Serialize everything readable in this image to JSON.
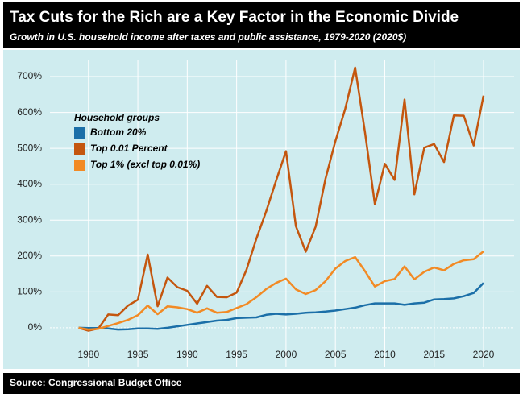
{
  "chart_data": {
    "type": "line",
    "title": "Tax Cuts for the Rich are a Key Factor in the Economic Divide",
    "subtitle": "Growth in U.S. household income after taxes and public assistance, 1979-2020 (2020$)",
    "source": "Source: Congressional Budget Office",
    "legend_title": "Household groups",
    "legend": "top-left",
    "grid": true,
    "x": [
      1979,
      1980,
      1981,
      1982,
      1983,
      1984,
      1985,
      1986,
      1987,
      1988,
      1989,
      1990,
      1991,
      1992,
      1993,
      1994,
      1995,
      1996,
      1997,
      1998,
      1999,
      2000,
      2001,
      2002,
      2003,
      2004,
      2005,
      2006,
      2007,
      2008,
      2009,
      2010,
      2011,
      2012,
      2013,
      2014,
      2015,
      2016,
      2017,
      2018,
      2019,
      2020
    ],
    "series": [
      {
        "name": "Bottom 20%",
        "color": "#1b6fa8",
        "values": [
          0,
          -1,
          -1,
          -2,
          -5,
          -4,
          -2,
          -2,
          -3,
          0,
          4,
          8,
          12,
          16,
          20,
          22,
          27,
          28,
          29,
          36,
          39,
          37,
          39,
          42,
          43,
          45,
          48,
          52,
          56,
          63,
          68,
          68,
          68,
          64,
          68,
          70,
          79,
          80,
          82,
          88,
          97,
          125
        ]
      },
      {
        "name": "Top 0.01 Percent",
        "color": "#c4560e",
        "values": [
          0,
          -8,
          -2,
          37,
          35,
          62,
          78,
          204,
          60,
          140,
          113,
          103,
          67,
          117,
          86,
          85,
          98,
          162,
          248,
          325,
          410,
          492,
          283,
          212,
          282,
          415,
          520,
          610,
          725,
          545,
          344,
          457,
          412,
          636,
          372,
          502,
          512,
          462,
          592,
          591,
          508,
          647
        ]
      },
      {
        "name": "Top 1% (excl top 0.01%)",
        "color": "#f28a24",
        "values": [
          0,
          -5,
          -3,
          5,
          13,
          22,
          35,
          62,
          38,
          60,
          57,
          52,
          42,
          54,
          42,
          44,
          55,
          66,
          85,
          108,
          125,
          137,
          107,
          94,
          105,
          130,
          165,
          186,
          197,
          158,
          115,
          130,
          136,
          171,
          135,
          156,
          168,
          160,
          178,
          188,
          191,
          213
        ]
      }
    ],
    "xlim": [
      1976.1,
      2023.1
    ],
    "xticks": [
      1980,
      1985,
      1990,
      1995,
      2000,
      2005,
      2010,
      2015,
      2020
    ],
    "ylim": [
      -108,
      745
    ],
    "yticks": [
      {
        "value": 0,
        "label": "0%"
      },
      {
        "value": 100,
        "label": "100%"
      },
      {
        "value": 200,
        "label": "200%"
      },
      {
        "value": 300,
        "label": "300%"
      },
      {
        "value": 400,
        "label": "400%"
      },
      {
        "value": 500,
        "label": "500%"
      },
      {
        "value": 600,
        "label": "600%"
      },
      {
        "value": 700,
        "label": "700%"
      }
    ]
  }
}
